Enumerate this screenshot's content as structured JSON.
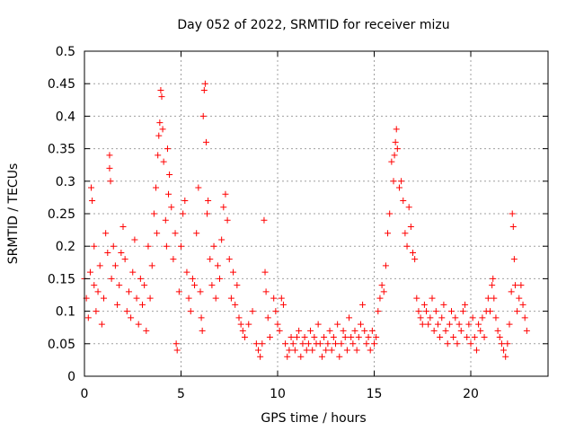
{
  "chart_data": {
    "type": "scatter",
    "title": "Day 052 of 2022, SRMTID for receiver mizu",
    "xlabel": "GPS time / hours",
    "ylabel": "SRMTID / TECUs",
    "xlim": [
      0,
      24
    ],
    "ylim": [
      0,
      0.5
    ],
    "grid": true,
    "marker": "+",
    "color": "#ff0000",
    "xticks": [
      {
        "value": 0,
        "label": "0"
      },
      {
        "value": 5,
        "label": "5"
      },
      {
        "value": 10,
        "label": "10"
      },
      {
        "value": 15,
        "label": "15"
      },
      {
        "value": 20,
        "label": "20"
      }
    ],
    "yticks": [
      {
        "value": 0,
        "label": "0"
      },
      {
        "value": 0.05,
        "label": "0.05"
      },
      {
        "value": 0.1,
        "label": "0.1"
      },
      {
        "value": 0.15,
        "label": "0.15"
      },
      {
        "value": 0.2,
        "label": "0.2"
      },
      {
        "value": 0.25,
        "label": "0.25"
      },
      {
        "value": 0.3,
        "label": "0.3"
      },
      {
        "value": 0.35,
        "label": "0.35"
      },
      {
        "value": 0.4,
        "label": "0.4"
      },
      {
        "value": 0.45,
        "label": "0.45"
      },
      {
        "value": 0.5,
        "label": "0.5"
      }
    ],
    "series": [
      {
        "name": "SRMTID",
        "points": [
          [
            0.0,
            0.15
          ],
          [
            0.1,
            0.12
          ],
          [
            0.2,
            0.09
          ],
          [
            0.3,
            0.16
          ],
          [
            0.35,
            0.29
          ],
          [
            0.4,
            0.27
          ],
          [
            0.5,
            0.2
          ],
          [
            0.5,
            0.14
          ],
          [
            0.6,
            0.1
          ],
          [
            0.7,
            0.13
          ],
          [
            0.8,
            0.17
          ],
          [
            0.9,
            0.08
          ],
          [
            1.0,
            0.12
          ],
          [
            1.1,
            0.22
          ],
          [
            1.2,
            0.19
          ],
          [
            1.3,
            0.34
          ],
          [
            1.3,
            0.32
          ],
          [
            1.35,
            0.3
          ],
          [
            1.4,
            0.15
          ],
          [
            1.5,
            0.2
          ],
          [
            1.6,
            0.17
          ],
          [
            1.7,
            0.11
          ],
          [
            1.8,
            0.14
          ],
          [
            1.9,
            0.19
          ],
          [
            2.0,
            0.23
          ],
          [
            2.1,
            0.18
          ],
          [
            2.2,
            0.1
          ],
          [
            2.3,
            0.13
          ],
          [
            2.4,
            0.09
          ],
          [
            2.5,
            0.16
          ],
          [
            2.6,
            0.21
          ],
          [
            2.7,
            0.12
          ],
          [
            2.8,
            0.08
          ],
          [
            2.9,
            0.15
          ],
          [
            3.0,
            0.11
          ],
          [
            3.1,
            0.14
          ],
          [
            3.2,
            0.07
          ],
          [
            3.3,
            0.2
          ],
          [
            3.4,
            0.12
          ],
          [
            3.5,
            0.17
          ],
          [
            3.6,
            0.25
          ],
          [
            3.7,
            0.29
          ],
          [
            3.75,
            0.22
          ],
          [
            3.8,
            0.34
          ],
          [
            3.85,
            0.37
          ],
          [
            3.9,
            0.39
          ],
          [
            3.95,
            0.44
          ],
          [
            4.0,
            0.43
          ],
          [
            4.05,
            0.38
          ],
          [
            4.1,
            0.33
          ],
          [
            4.2,
            0.24
          ],
          [
            4.25,
            0.2
          ],
          [
            4.3,
            0.35
          ],
          [
            4.35,
            0.28
          ],
          [
            4.4,
            0.31
          ],
          [
            4.5,
            0.26
          ],
          [
            4.6,
            0.18
          ],
          [
            4.7,
            0.22
          ],
          [
            4.75,
            0.05
          ],
          [
            4.8,
            0.04
          ],
          [
            4.9,
            0.13
          ],
          [
            5.0,
            0.2
          ],
          [
            5.1,
            0.25
          ],
          [
            5.2,
            0.27
          ],
          [
            5.3,
            0.16
          ],
          [
            5.4,
            0.12
          ],
          [
            5.5,
            0.1
          ],
          [
            5.6,
            0.15
          ],
          [
            5.7,
            0.14
          ],
          [
            5.8,
            0.22
          ],
          [
            5.9,
            0.29
          ],
          [
            6.0,
            0.13
          ],
          [
            6.05,
            0.09
          ],
          [
            6.1,
            0.07
          ],
          [
            6.15,
            0.4
          ],
          [
            6.2,
            0.44
          ],
          [
            6.25,
            0.45
          ],
          [
            6.3,
            0.36
          ],
          [
            6.35,
            0.25
          ],
          [
            6.4,
            0.27
          ],
          [
            6.5,
            0.18
          ],
          [
            6.6,
            0.14
          ],
          [
            6.7,
            0.2
          ],
          [
            6.8,
            0.12
          ],
          [
            6.9,
            0.17
          ],
          [
            7.0,
            0.15
          ],
          [
            7.1,
            0.21
          ],
          [
            7.2,
            0.26
          ],
          [
            7.3,
            0.28
          ],
          [
            7.4,
            0.24
          ],
          [
            7.5,
            0.18
          ],
          [
            7.6,
            0.12
          ],
          [
            7.7,
            0.16
          ],
          [
            7.8,
            0.11
          ],
          [
            7.9,
            0.14
          ],
          [
            8.0,
            0.09
          ],
          [
            8.1,
            0.08
          ],
          [
            8.2,
            0.07
          ],
          [
            8.3,
            0.06
          ],
          [
            8.5,
            0.08
          ],
          [
            8.7,
            0.1
          ],
          [
            8.9,
            0.05
          ],
          [
            9.0,
            0.04
          ],
          [
            9.1,
            0.03
          ],
          [
            9.2,
            0.05
          ],
          [
            9.3,
            0.24
          ],
          [
            9.35,
            0.16
          ],
          [
            9.4,
            0.13
          ],
          [
            9.5,
            0.09
          ],
          [
            9.6,
            0.06
          ],
          [
            9.8,
            0.12
          ],
          [
            9.9,
            0.1
          ],
          [
            10.0,
            0.08
          ],
          [
            10.1,
            0.07
          ],
          [
            10.2,
            0.12
          ],
          [
            10.3,
            0.11
          ],
          [
            10.4,
            0.05
          ],
          [
            10.5,
            0.03
          ],
          [
            10.6,
            0.04
          ],
          [
            10.7,
            0.06
          ],
          [
            10.8,
            0.05
          ],
          [
            10.9,
            0.04
          ],
          [
            11.0,
            0.06
          ],
          [
            11.1,
            0.07
          ],
          [
            11.2,
            0.03
          ],
          [
            11.3,
            0.05
          ],
          [
            11.4,
            0.06
          ],
          [
            11.5,
            0.04
          ],
          [
            11.6,
            0.05
          ],
          [
            11.7,
            0.07
          ],
          [
            11.8,
            0.04
          ],
          [
            11.9,
            0.06
          ],
          [
            12.0,
            0.05
          ],
          [
            12.1,
            0.08
          ],
          [
            12.2,
            0.05
          ],
          [
            12.3,
            0.03
          ],
          [
            12.4,
            0.06
          ],
          [
            12.5,
            0.04
          ],
          [
            12.6,
            0.05
          ],
          [
            12.7,
            0.07
          ],
          [
            12.8,
            0.04
          ],
          [
            12.9,
            0.06
          ],
          [
            13.0,
            0.05
          ],
          [
            13.1,
            0.08
          ],
          [
            13.2,
            0.03
          ],
          [
            13.3,
            0.05
          ],
          [
            13.4,
            0.07
          ],
          [
            13.5,
            0.06
          ],
          [
            13.6,
            0.04
          ],
          [
            13.7,
            0.09
          ],
          [
            13.8,
            0.06
          ],
          [
            13.9,
            0.05
          ],
          [
            14.0,
            0.07
          ],
          [
            14.1,
            0.04
          ],
          [
            14.2,
            0.06
          ],
          [
            14.3,
            0.08
          ],
          [
            14.4,
            0.11
          ],
          [
            14.5,
            0.07
          ],
          [
            14.6,
            0.05
          ],
          [
            14.7,
            0.06
          ],
          [
            14.8,
            0.04
          ],
          [
            14.9,
            0.07
          ],
          [
            15.0,
            0.05
          ],
          [
            15.1,
            0.06
          ],
          [
            15.2,
            0.1
          ],
          [
            15.3,
            0.12
          ],
          [
            15.4,
            0.14
          ],
          [
            15.5,
            0.13
          ],
          [
            15.6,
            0.17
          ],
          [
            15.7,
            0.22
          ],
          [
            15.8,
            0.25
          ],
          [
            15.9,
            0.33
          ],
          [
            16.0,
            0.3
          ],
          [
            16.05,
            0.34
          ],
          [
            16.1,
            0.36
          ],
          [
            16.15,
            0.38
          ],
          [
            16.2,
            0.35
          ],
          [
            16.3,
            0.29
          ],
          [
            16.4,
            0.3
          ],
          [
            16.5,
            0.27
          ],
          [
            16.6,
            0.22
          ],
          [
            16.7,
            0.2
          ],
          [
            16.8,
            0.26
          ],
          [
            16.9,
            0.23
          ],
          [
            17.0,
            0.19
          ],
          [
            17.1,
            0.18
          ],
          [
            17.2,
            0.12
          ],
          [
            17.3,
            0.1
          ],
          [
            17.4,
            0.09
          ],
          [
            17.5,
            0.08
          ],
          [
            17.6,
            0.11
          ],
          [
            17.7,
            0.1
          ],
          [
            17.8,
            0.08
          ],
          [
            17.9,
            0.09
          ],
          [
            18.0,
            0.12
          ],
          [
            18.1,
            0.07
          ],
          [
            18.2,
            0.1
          ],
          [
            18.3,
            0.08
          ],
          [
            18.4,
            0.06
          ],
          [
            18.5,
            0.09
          ],
          [
            18.6,
            0.11
          ],
          [
            18.7,
            0.07
          ],
          [
            18.8,
            0.05
          ],
          [
            18.9,
            0.08
          ],
          [
            19.0,
            0.1
          ],
          [
            19.1,
            0.06
          ],
          [
            19.2,
            0.09
          ],
          [
            19.3,
            0.05
          ],
          [
            19.4,
            0.08
          ],
          [
            19.5,
            0.07
          ],
          [
            19.6,
            0.1
          ],
          [
            19.7,
            0.11
          ],
          [
            19.8,
            0.06
          ],
          [
            19.9,
            0.08
          ],
          [
            20.0,
            0.05
          ],
          [
            20.1,
            0.09
          ],
          [
            20.2,
            0.06
          ],
          [
            20.3,
            0.04
          ],
          [
            20.4,
            0.08
          ],
          [
            20.5,
            0.07
          ],
          [
            20.6,
            0.09
          ],
          [
            20.7,
            0.06
          ],
          [
            20.8,
            0.1
          ],
          [
            20.9,
            0.12
          ],
          [
            21.0,
            0.1
          ],
          [
            21.1,
            0.14
          ],
          [
            21.15,
            0.15
          ],
          [
            21.2,
            0.12
          ],
          [
            21.3,
            0.09
          ],
          [
            21.4,
            0.07
          ],
          [
            21.5,
            0.06
          ],
          [
            21.6,
            0.05
          ],
          [
            21.7,
            0.04
          ],
          [
            21.8,
            0.03
          ],
          [
            21.9,
            0.05
          ],
          [
            22.0,
            0.08
          ],
          [
            22.1,
            0.13
          ],
          [
            22.15,
            0.25
          ],
          [
            22.2,
            0.23
          ],
          [
            22.25,
            0.18
          ],
          [
            22.3,
            0.14
          ],
          [
            22.4,
            0.1
          ],
          [
            22.5,
            0.12
          ],
          [
            22.6,
            0.14
          ],
          [
            22.7,
            0.11
          ],
          [
            22.8,
            0.09
          ],
          [
            22.9,
            0.07
          ]
        ]
      }
    ]
  }
}
